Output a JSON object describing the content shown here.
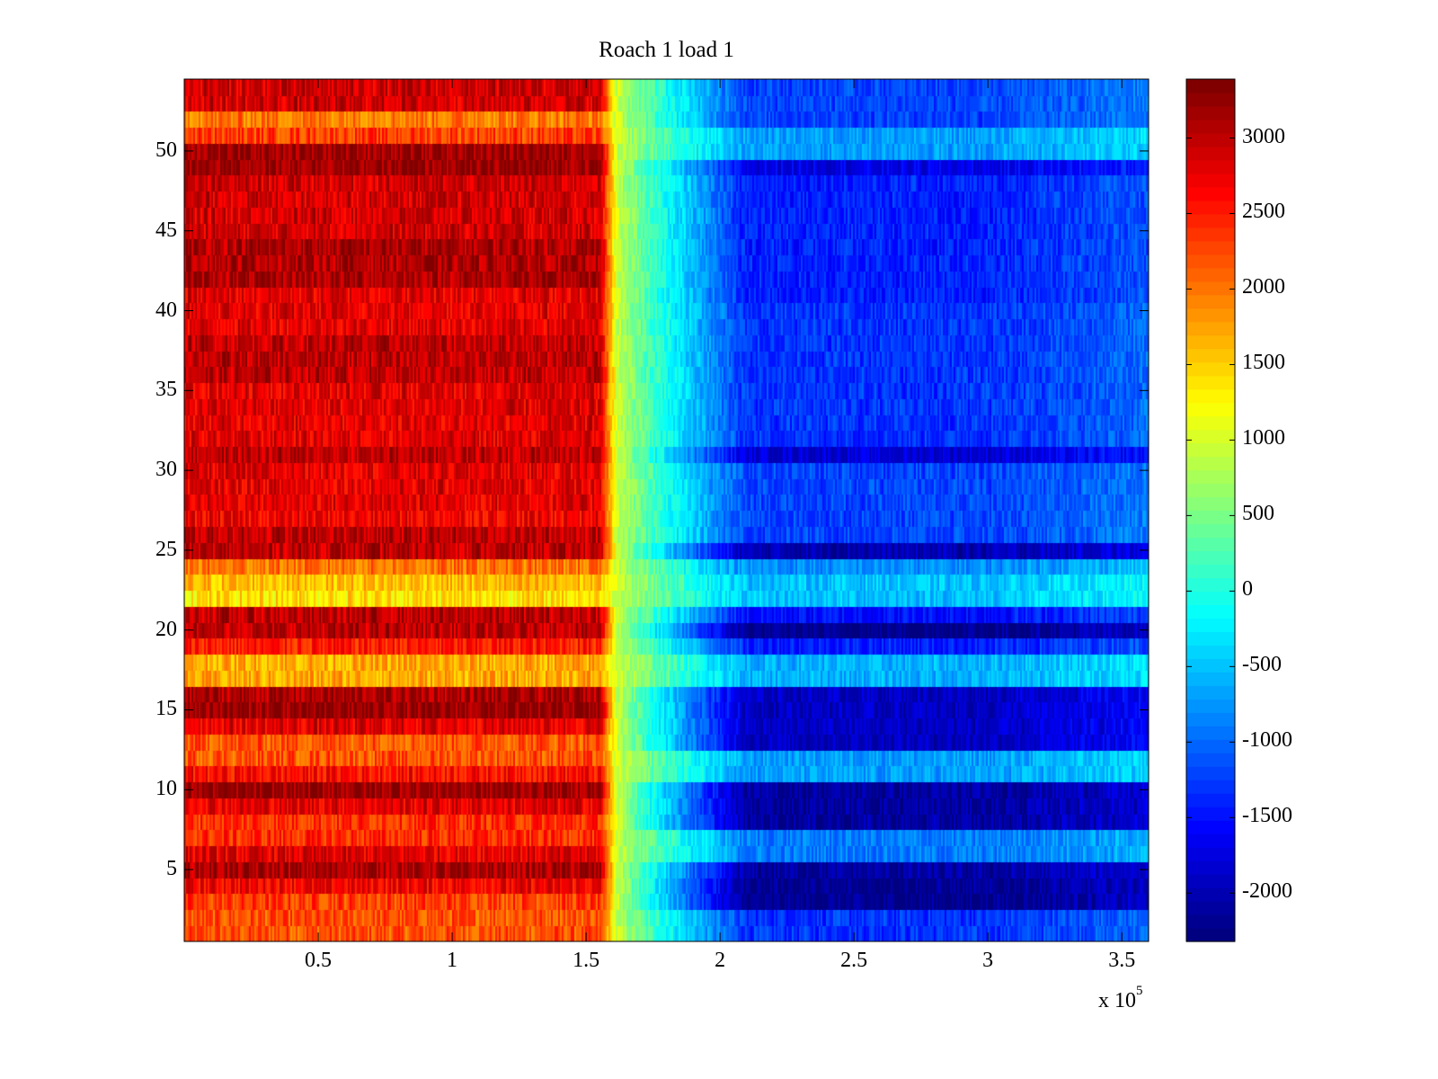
{
  "chart_data": {
    "type": "heatmap",
    "title": "Roach 1 load 1",
    "xlabel": "",
    "ylabel": "",
    "x_multiplier_label": "x 10",
    "x_multiplier_exponent": "5",
    "xlim": [
      0,
      360000
    ],
    "ylim": [
      0.5,
      54.5
    ],
    "clim": [
      -2320,
      3390
    ],
    "colormap": "jet",
    "x_ticks": [
      50000,
      100000,
      150000,
      200000,
      250000,
      300000,
      350000
    ],
    "x_tick_labels": [
      "0.5",
      "1",
      "1.5",
      "2",
      "2.5",
      "3",
      "3.5"
    ],
    "y_ticks": [
      5,
      10,
      15,
      20,
      25,
      30,
      35,
      40,
      45,
      50
    ],
    "y_tick_labels": [
      "5",
      "10",
      "15",
      "20",
      "25",
      "30",
      "35",
      "40",
      "45",
      "50"
    ],
    "colorbar_ticks": [
      -2000,
      -1500,
      -1000,
      -500,
      0,
      500,
      1000,
      1500,
      2000,
      2500,
      3000
    ],
    "colorbar_tick_labels": [
      "-2000",
      "-1500",
      "-1000",
      "-500",
      "0",
      "500",
      "1000",
      "1500",
      "2000",
      "2500",
      "3000"
    ],
    "rows": 54,
    "transition_x": [
      155000,
      210000
    ],
    "row_left_values": [
      2200,
      2200,
      2300,
      2700,
      3100,
      2800,
      2400,
      2400,
      2800,
      3200,
      2600,
      2200,
      2200,
      2800,
      3200,
      3100,
      1700,
      1700,
      2500,
      3000,
      3000,
      1400,
      1600,
      2000,
      3000,
      3000,
      2700,
      2800,
      2800,
      2800,
      3000,
      2800,
      2800,
      2800,
      2800,
      3000,
      3000,
      3000,
      2800,
      2800,
      2800,
      3100,
      3100,
      3100,
      2900,
      2900,
      2900,
      2900,
      3200,
      3200,
      2300,
      2000,
      2900,
      2900
    ],
    "row_right_values": [
      -1300,
      -1300,
      -2200,
      -2200,
      -2100,
      -900,
      -900,
      -2100,
      -2100,
      -2100,
      -700,
      -700,
      -1900,
      -1900,
      -1900,
      -1900,
      -600,
      -600,
      -1400,
      -2200,
      -1500,
      -500,
      -500,
      -800,
      -2000,
      -1200,
      -1200,
      -1200,
      -1200,
      -1200,
      -1800,
      -1300,
      -1300,
      -1300,
      -1300,
      -1300,
      -1300,
      -1300,
      -1300,
      -1300,
      -1400,
      -1400,
      -1400,
      -1400,
      -1400,
      -1400,
      -1400,
      -1400,
      -1700,
      -700,
      -700,
      -1200,
      -1200,
      -1200
    ]
  }
}
